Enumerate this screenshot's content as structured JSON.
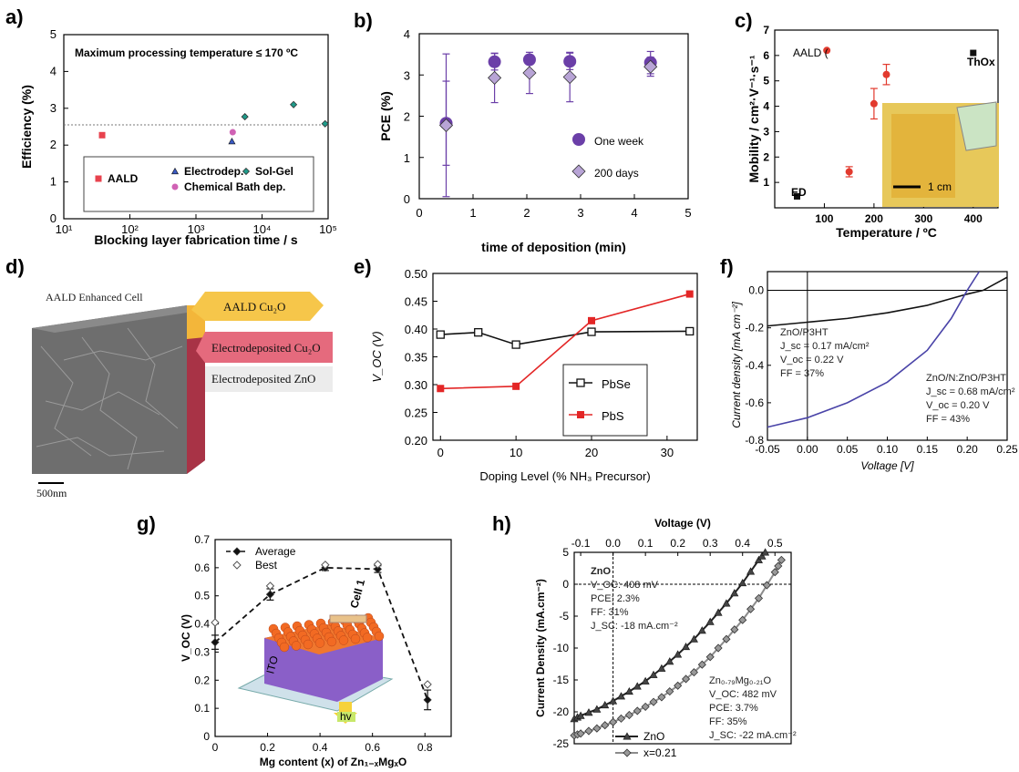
{
  "panels": {
    "a": "a)",
    "b": "b)",
    "c": "c)",
    "d": "d)",
    "e": "e)",
    "f": "f)",
    "g": "g)",
    "h": "h)"
  },
  "chart_data": [
    {
      "id": "a",
      "type": "scatter",
      "title": "Maximum processing temperature ≤ 170 ºC",
      "xlabel": "Blocking layer fabrication time / s",
      "ylabel": "Efficiency (%)",
      "xscale": "log",
      "xlim": [
        10,
        100000
      ],
      "ylim": [
        0,
        5
      ],
      "xticks": [
        "10¹",
        "10²",
        "10³",
        "10⁴",
        "10⁵"
      ],
      "yticks": [
        "0",
        "1",
        "2",
        "3",
        "4",
        "5"
      ],
      "reference_line_y": 2.55,
      "legend_position": "bottom",
      "series": [
        {
          "name": "AALD",
          "color": "#e8424e",
          "marker": "square",
          "points": [
            [
              38,
              2.27
            ]
          ]
        },
        {
          "name": "Electrodep.",
          "color": "#3b5bc4",
          "marker": "triangle",
          "points": [
            [
              3500,
              2.1
            ]
          ]
        },
        {
          "name": "Sol-Gel",
          "color": "#1f9b8a",
          "marker": "diamond",
          "points": [
            [
              5500,
              2.77
            ],
            [
              30000,
              3.1
            ],
            [
              90000,
              2.58
            ]
          ]
        },
        {
          "name": "Chemical Bath dep.",
          "color": "#d062b4",
          "marker": "circle",
          "points": [
            [
              3600,
              2.35
            ]
          ]
        }
      ]
    },
    {
      "id": "b",
      "type": "scatter",
      "xlabel": "time of deposition (min)",
      "ylabel": "PCE (%)",
      "xlim": [
        0,
        5
      ],
      "ylim": [
        0,
        4
      ],
      "xticks": [
        "0",
        "1",
        "2",
        "3",
        "4",
        "5"
      ],
      "yticks": [
        "0",
        "1",
        "2",
        "3",
        "4"
      ],
      "legend_position": "bottom-right",
      "series": [
        {
          "name": "One week",
          "color": "#6b3fa8",
          "marker": "circle",
          "points": [
            [
              0.5,
              1.83,
              1.02
            ],
            [
              1.4,
              3.32,
              0.2
            ],
            [
              2.05,
              3.37,
              0.1
            ],
            [
              2.8,
              3.33,
              0.2
            ],
            [
              4.3,
              3.3,
              0.27
            ]
          ]
        },
        {
          "name": "200 days",
          "color": "#b8a4d6",
          "marker": "diamond",
          "points": [
            [
              0.5,
              1.78,
              1.73
            ],
            [
              1.4,
              2.93,
              0.6
            ],
            [
              2.05,
              3.05,
              0.5
            ],
            [
              2.8,
              2.95,
              0.6
            ],
            [
              4.3,
              3.2,
              0.23
            ]
          ]
        }
      ]
    },
    {
      "id": "c",
      "type": "scatter",
      "xlabel": "Temperature / ºC",
      "ylabel": "Mobility / cm²·V⁻¹·s⁻¹",
      "xlim": [
        0,
        450
      ],
      "ylim": [
        0,
        7
      ],
      "xticks": [
        "100",
        "200",
        "300",
        "400"
      ],
      "yticks": [
        "1",
        "2",
        "3",
        "4",
        "5",
        "6",
        "7"
      ],
      "annotations": {
        "aald": "AALD (",
        "ed": "ED",
        "thox": "ThOx",
        "scale": "1 cm"
      },
      "series": [
        {
          "name": "AALD",
          "color": "#e23a2e",
          "marker": "circle",
          "points": [
            [
              105,
              6.2,
              0
            ],
            [
              150,
              1.42,
              0.2
            ],
            [
              200,
              4.1,
              0.6
            ],
            [
              225,
              5.25,
              0.4
            ]
          ]
        },
        {
          "name": "ED",
          "color": "#111111",
          "marker": "square",
          "points": [
            [
              45,
              0.45,
              0
            ]
          ]
        },
        {
          "name": "ThOx",
          "color": "#111111",
          "marker": "square",
          "points": [
            [
              400,
              6.1,
              0
            ]
          ]
        }
      ]
    },
    {
      "id": "d",
      "type": "diagram",
      "title": "AALD Enhanced Cell",
      "layers": [
        "AALD Cu₂O",
        "Electrodeposited Cu₂O",
        "Electrodeposited ZnO"
      ],
      "scale_bar": "500nm",
      "colors": [
        "#f6c64a",
        "#e56a7d",
        "#e9e9e9"
      ]
    },
    {
      "id": "e",
      "type": "line",
      "xlabel": "Doping Level (% NH₃ Precursor)",
      "ylabel": "V_OC (V)",
      "xlim": [
        -1,
        34
      ],
      "ylim": [
        0.2,
        0.5
      ],
      "xticks": [
        "0",
        "10",
        "20",
        "30"
      ],
      "yticks": [
        "0.20",
        "0.25",
        "0.30",
        "0.35",
        "0.40",
        "0.45",
        "0.50"
      ],
      "legend_position": "bottom-right",
      "series": [
        {
          "name": "PbSe",
          "color": "#111111",
          "marker": "open-square",
          "x": [
            0,
            5,
            10,
            20,
            33
          ],
          "y": [
            0.39,
            0.394,
            0.372,
            0.395,
            0.396
          ]
        },
        {
          "name": "PbS",
          "color": "#e32626",
          "marker": "filled-square",
          "x": [
            0,
            10,
            20,
            33
          ],
          "y": [
            0.293,
            0.297,
            0.415,
            0.463
          ]
        }
      ]
    },
    {
      "id": "f",
      "type": "line",
      "xlabel": "Voltage [V]",
      "ylabel": "Current density [mA cm⁻²]",
      "xlim": [
        -0.05,
        0.25
      ],
      "ylim": [
        -0.8,
        0.1
      ],
      "xticks": [
        "-0.05",
        "0.00",
        "0.05",
        "0.10",
        "0.15",
        "0.20",
        "0.25"
      ],
      "yticks": [
        "0.0",
        "-0.2",
        "-0.4",
        "-0.6",
        "-0.8"
      ],
      "annotations": {
        "zno": [
          "ZnO/P3HT",
          "J_sc = 0.17 mA/cm²",
          "V_oc = 0.22 V",
          "FF = 37%"
        ],
        "nzno": [
          "ZnO/N:ZnO/P3HT",
          "J_sc = 0.68 mA/cm²",
          "V_oc = 0.20 V",
          "FF = 43%"
        ]
      },
      "series": [
        {
          "name": "ZnO/P3HT",
          "color": "#111111",
          "x": [
            -0.05,
            0,
            0.05,
            0.1,
            0.15,
            0.2,
            0.22,
            0.25
          ],
          "y": [
            -0.19,
            -0.17,
            -0.15,
            -0.12,
            -0.08,
            -0.02,
            0.0,
            0.07
          ]
        },
        {
          "name": "ZnO/N:ZnO/P3HT",
          "color": "#4a44a8",
          "x": [
            -0.05,
            0,
            0.05,
            0.1,
            0.15,
            0.18,
            0.2,
            0.215
          ],
          "y": [
            -0.73,
            -0.68,
            -0.6,
            -0.49,
            -0.32,
            -0.15,
            0.0,
            0.15
          ]
        }
      ]
    },
    {
      "id": "g",
      "type": "line",
      "xlabel": "Mg content (x) of Zn₁₋ₓMgₓO",
      "ylabel": "V_OC (V)",
      "xlim": [
        0,
        0.9
      ],
      "ylim": [
        0,
        0.7
      ],
      "xticks": [
        "0",
        "0.2",
        "0.4",
        "0.6",
        "0.8"
      ],
      "yticks": [
        "0",
        "0.1",
        "0.2",
        "0.3",
        "0.4",
        "0.5",
        "0.6",
        "0.7"
      ],
      "inset_labels": {
        "cell": "Cell 1",
        "ito": "ITO",
        "hv": "hv"
      },
      "series": [
        {
          "name": "Average",
          "color": "#111111",
          "marker": "filled-diamond",
          "x": [
            0,
            0.21,
            0.42,
            0.62,
            0.81
          ],
          "y": [
            0.335,
            0.505,
            0.6,
            0.595,
            0.13
          ]
        },
        {
          "name": "Best",
          "color": "#555555",
          "marker": "open-diamond",
          "x": [
            0,
            0.21,
            0.42,
            0.62,
            0.81
          ],
          "y": [
            0.405,
            0.535,
            0.61,
            0.612,
            0.185
          ]
        }
      ]
    },
    {
      "id": "h",
      "type": "line",
      "xlabel": "Voltage (V)",
      "ylabel": "Current Density (mA.cm⁻²)",
      "xlim": [
        -0.12,
        0.55
      ],
      "ylim": [
        -25,
        5
      ],
      "xticks": [
        "-0.1",
        "0.0",
        "0.1",
        "0.2",
        "0.3",
        "0.4",
        "0.5"
      ],
      "yticks": [
        "5",
        "0",
        "-5",
        "-10",
        "-15",
        "-20",
        "-25"
      ],
      "annotations": {
        "zno": [
          "ZnO",
          "V_OC: 408 mV",
          "PCE:  2.3%",
          "FF: 31%",
          "J_SC: -18 mA.cm⁻²"
        ],
        "znmgo": [
          "Zn₀.₇₉Mg₀.₂₁O",
          "V_OC: 482 mV",
          "PCE: 3.7%",
          "FF: 35%",
          "J_SC: -22 mA.cm⁻²"
        ]
      },
      "legend_position": "bottom-left",
      "series": [
        {
          "name": "ZnO",
          "color": "#222222",
          "marker": "triangle",
          "x": [
            -0.12,
            -0.1,
            -0.05,
            0,
            0.05,
            0.1,
            0.15,
            0.2,
            0.25,
            0.3,
            0.35,
            0.4,
            0.45,
            0.47
          ],
          "y": [
            -21.1,
            -20.6,
            -19.6,
            -18.3,
            -16.8,
            -15.2,
            -13.2,
            -11.0,
            -8.6,
            -5.9,
            -3.0,
            0.2,
            3.8,
            5.0
          ]
        },
        {
          "name": "x=0.21",
          "color": "#8c8c8c",
          "marker": "diamond",
          "x": [
            -0.12,
            -0.1,
            -0.05,
            0,
            0.05,
            0.1,
            0.15,
            0.2,
            0.25,
            0.3,
            0.35,
            0.4,
            0.45,
            0.5,
            0.52
          ],
          "y": [
            -23.7,
            -23.4,
            -22.6,
            -21.6,
            -20.5,
            -19.2,
            -17.7,
            -15.9,
            -13.8,
            -11.4,
            -8.6,
            -5.6,
            -2.2,
            1.9,
            3.8
          ]
        }
      ]
    }
  ]
}
